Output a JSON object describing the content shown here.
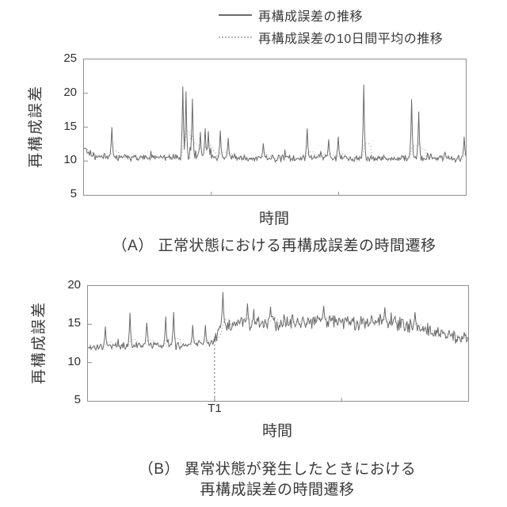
{
  "colors": {
    "series_line": "#6a6a6a",
    "average_line": "#b3b3b3",
    "axis": "#8f8f8f",
    "annotation": "#7a7a7a",
    "text": "#3a3a3a"
  },
  "legend": {
    "items": [
      {
        "label": "再構成誤差の推移",
        "style": "solid"
      },
      {
        "label": "再構成誤差の10日間平均の推移",
        "style": "dotted"
      }
    ]
  },
  "chart_data": [
    {
      "id": "A",
      "type": "line",
      "caption": "（A） 正常状態における再構成誤差の時間遷移",
      "xlabel": "時間",
      "ylabel": "再構成誤差",
      "ylim": [
        5,
        25
      ],
      "yticks": [
        5,
        10,
        15,
        20,
        25
      ],
      "grid": false,
      "legend_position": "top",
      "n_points": 480,
      "seed": 3,
      "baseline_keypoints": [
        [
          0,
          12.0
        ],
        [
          0.012,
          11.1
        ],
        [
          0.03,
          10.6
        ],
        [
          0.5,
          10.45
        ],
        [
          1,
          10.4
        ]
      ],
      "noise_keypoints": [
        [
          0,
          0.45
        ],
        [
          1,
          0.45
        ]
      ],
      "spikes": [
        {
          "x": 0.073,
          "v": 15.0
        },
        {
          "x": 0.258,
          "v": 21.0
        },
        {
          "x": 0.268,
          "v": 20.3
        },
        {
          "x": 0.283,
          "v": 19.2
        },
        {
          "x": 0.305,
          "v": 14.3
        },
        {
          "x": 0.318,
          "v": 14.8
        },
        {
          "x": 0.325,
          "v": 14.4
        },
        {
          "x": 0.358,
          "v": 14.5
        },
        {
          "x": 0.378,
          "v": 13.4
        },
        {
          "x": 0.47,
          "v": 12.6
        },
        {
          "x": 0.585,
          "v": 14.8
        },
        {
          "x": 0.64,
          "v": 13.2
        },
        {
          "x": 0.665,
          "v": 13.6
        },
        {
          "x": 0.733,
          "v": 21.3
        },
        {
          "x": 0.858,
          "v": 19.1
        },
        {
          "x": 0.877,
          "v": 17.3
        },
        {
          "x": 0.995,
          "v": 13.6
        }
      ],
      "series": [
        {
          "name": "再構成誤差の推移",
          "style": "solid"
        },
        {
          "name": "再構成誤差の10日間平均の推移",
          "style": "dotted",
          "derived": "10日間移動平均",
          "window": 10
        }
      ]
    },
    {
      "id": "B",
      "type": "line",
      "caption_lines": [
        "（B） 異常状態が発生したときにおける",
        "再構成誤差の時間遷移"
      ],
      "xlabel": "時間",
      "ylabel": "再構成誤差",
      "ylim": [
        5,
        20
      ],
      "yticks": [
        5,
        10,
        15,
        20
      ],
      "grid": false,
      "annotation": {
        "label": "T1",
        "x": 0.333,
        "style": "dashed-vertical"
      },
      "n_points": 480,
      "seed": 11,
      "baseline_keypoints": [
        [
          0,
          12.0
        ],
        [
          0.05,
          12.1
        ],
        [
          0.31,
          12.35
        ],
        [
          0.333,
          13.0
        ],
        [
          0.355,
          15.0
        ],
        [
          0.5,
          15.2
        ],
        [
          0.65,
          15.5
        ],
        [
          0.8,
          15.1
        ],
        [
          0.9,
          14.3
        ],
        [
          0.97,
          13.2
        ],
        [
          1,
          12.9
        ]
      ],
      "noise_keypoints": [
        [
          0,
          0.45
        ],
        [
          0.32,
          0.5
        ],
        [
          0.36,
          0.95
        ],
        [
          0.8,
          0.9
        ],
        [
          1,
          0.75
        ]
      ],
      "spikes": [
        {
          "x": 0.045,
          "v": 14.7
        },
        {
          "x": 0.11,
          "v": 16.5
        },
        {
          "x": 0.155,
          "v": 15.2
        },
        {
          "x": 0.205,
          "v": 16.0
        },
        {
          "x": 0.226,
          "v": 16.6
        },
        {
          "x": 0.275,
          "v": 14.9
        },
        {
          "x": 0.31,
          "v": 14.9
        },
        {
          "x": 0.354,
          "v": 19.2
        },
        {
          "x": 0.42,
          "v": 17.7
        },
        {
          "x": 0.48,
          "v": 17.3
        },
        {
          "x": 0.62,
          "v": 17.4
        },
        {
          "x": 0.78,
          "v": 17.2
        },
        {
          "x": 0.86,
          "v": 16.6
        }
      ],
      "series": [
        {
          "name": "再構成誤差の推移",
          "style": "solid"
        },
        {
          "name": "再構成誤差の10日間平均の推移",
          "style": "dotted",
          "derived": "10日間移動平均",
          "window": 10
        }
      ]
    }
  ]
}
